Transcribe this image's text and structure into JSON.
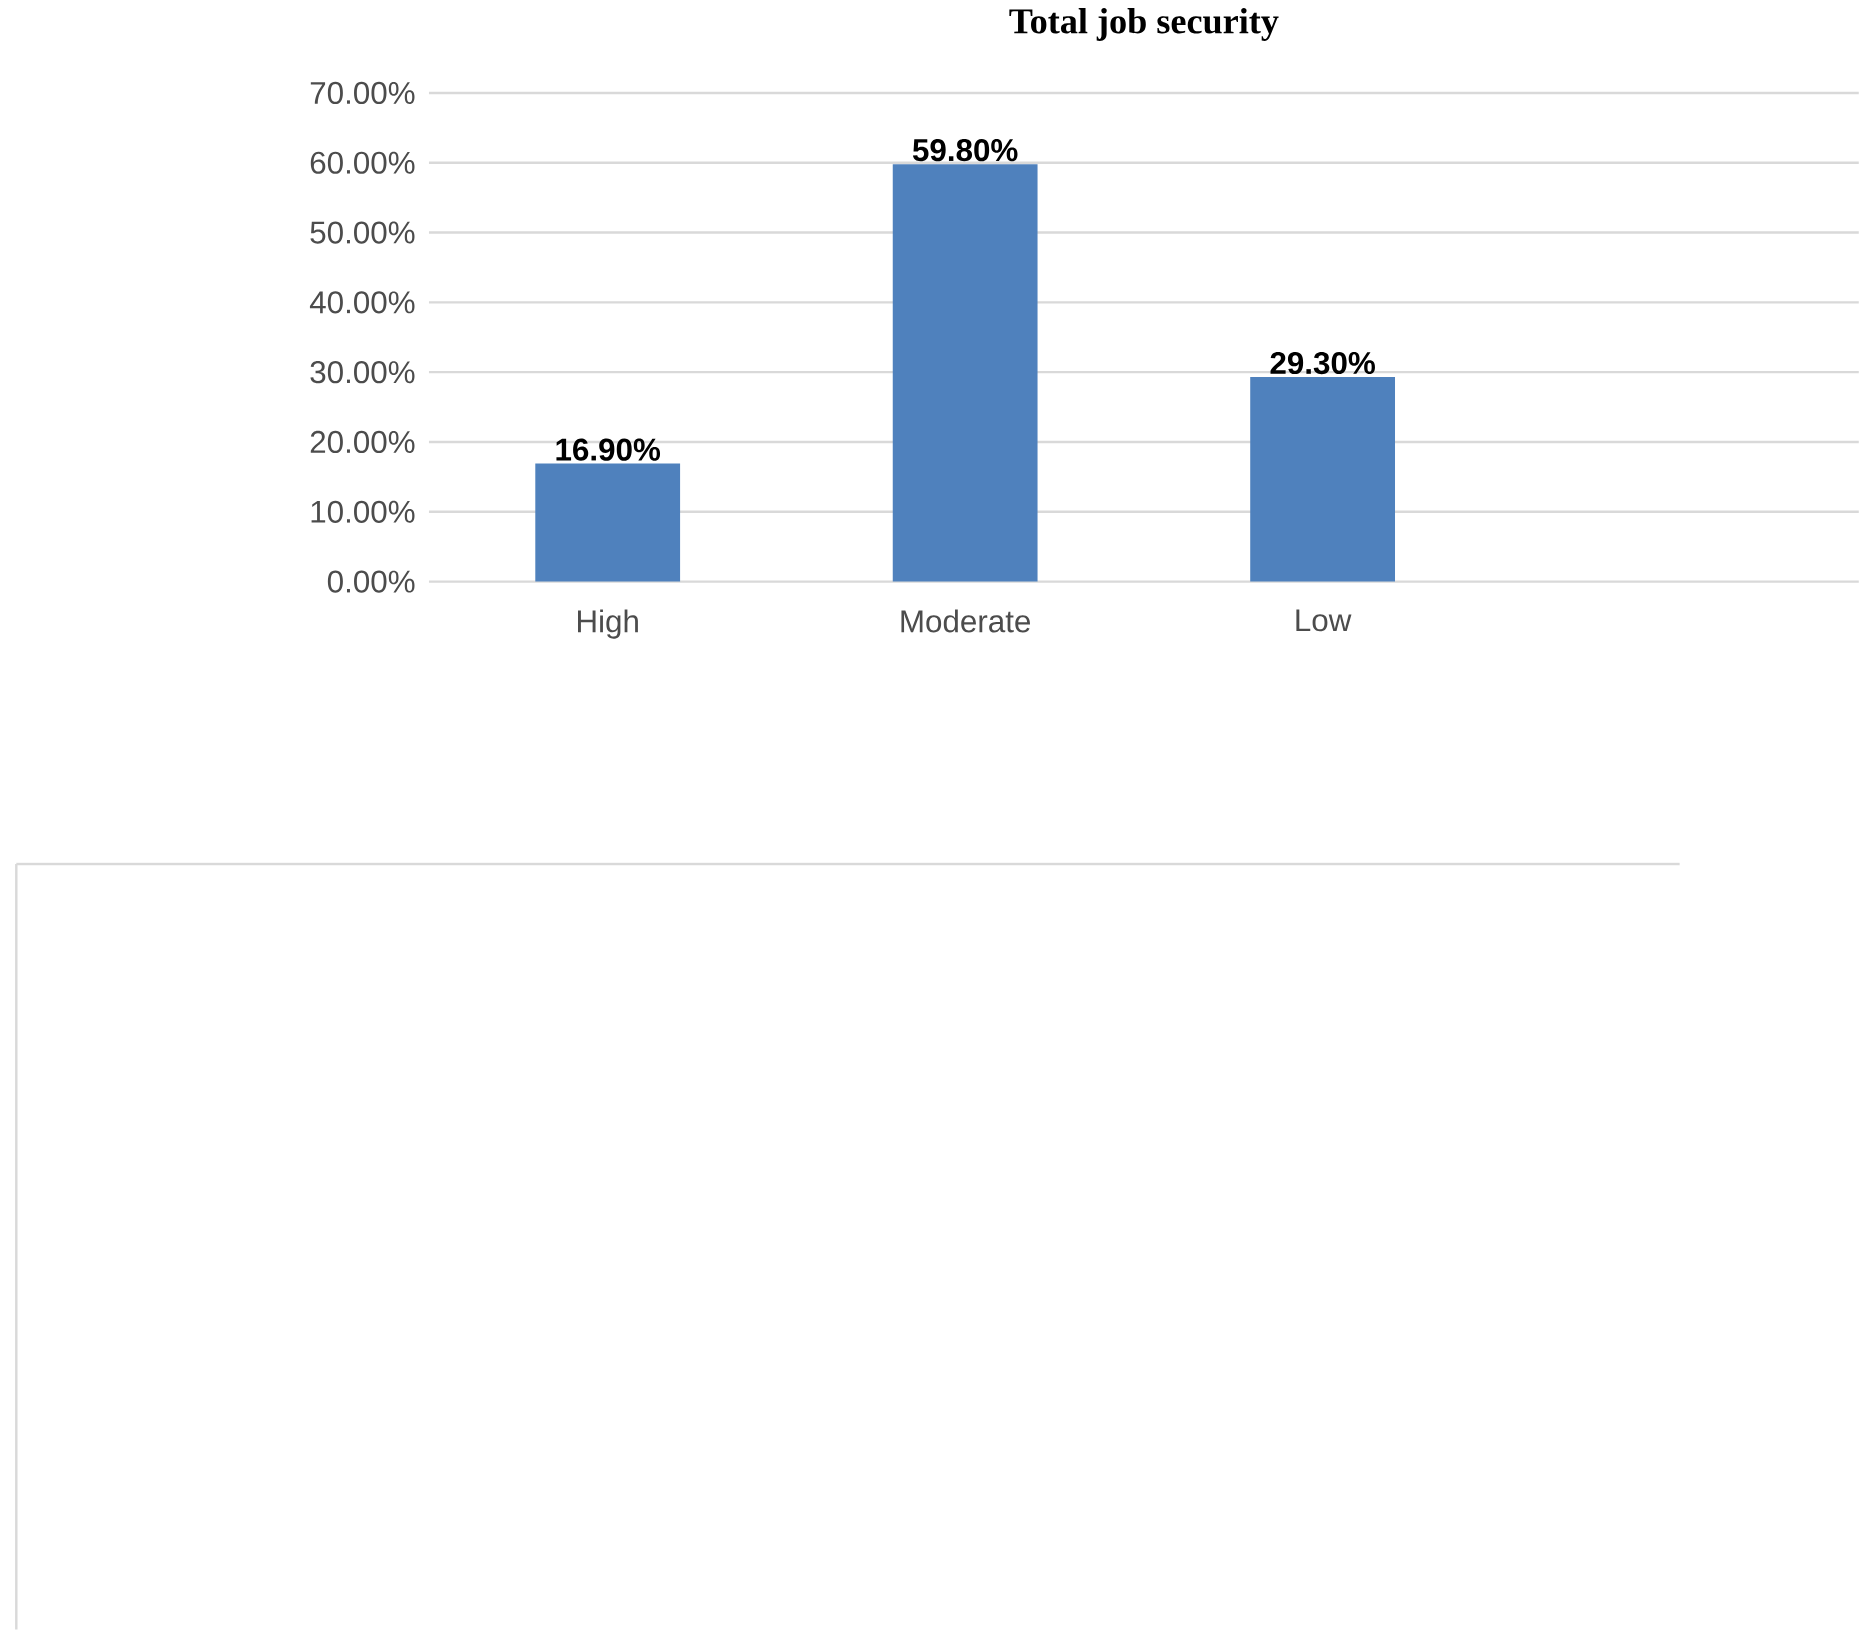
{
  "chart_data": {
    "type": "bar",
    "title": "Total job security",
    "categories": [
      "High",
      "Moderate",
      "Low",
      null
    ],
    "values": [
      16.9,
      59.8,
      29.3,
      null
    ],
    "value_labels": [
      "16.90%",
      "59.80%",
      "29.30%",
      null
    ],
    "color": "#4f81bd",
    "ylim": [
      0,
      70
    ],
    "yticks": [
      {
        "value": 0,
        "label": "0.00%"
      },
      {
        "value": 10,
        "label": "10.00%"
      },
      {
        "value": 20,
        "label": "20.00%"
      },
      {
        "value": 30,
        "label": "30.00%"
      },
      {
        "value": 40,
        "label": "40.00%"
      },
      {
        "value": 50,
        "label": "50.00%"
      },
      {
        "value": 60,
        "label": "60.00%"
      },
      {
        "value": 70,
        "label": "70.00%"
      }
    ],
    "grid": "y"
  }
}
